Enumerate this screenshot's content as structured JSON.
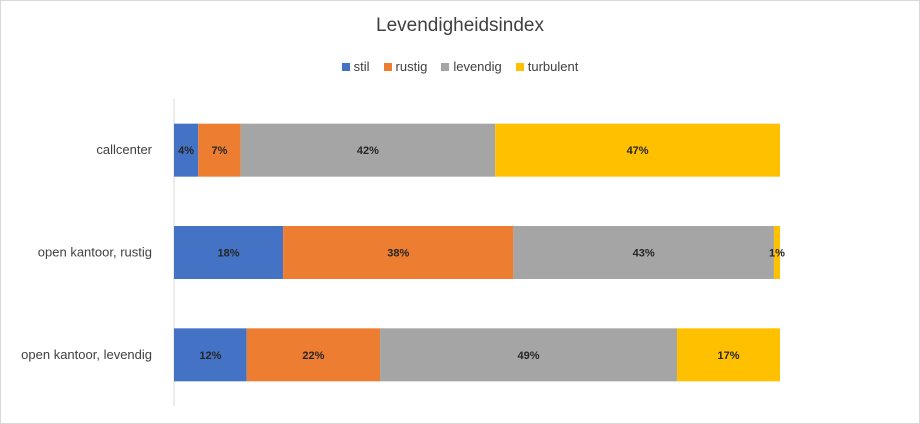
{
  "chart_data": {
    "type": "bar",
    "orientation": "horizontal",
    "stacked": "percent",
    "title": "Levendigheidsindex",
    "legend_position": "top",
    "categories": [
      "callcenter",
      "open kantoor, rustig",
      "open kantoor, levendig"
    ],
    "series": [
      {
        "name": "stil",
        "color": "#4472c4",
        "values": [
          4,
          18,
          12
        ],
        "labels": [
          "4%",
          "18%",
          "12%"
        ]
      },
      {
        "name": "rustig",
        "color": "#ed7d31",
        "values": [
          7,
          38,
          22
        ],
        "labels": [
          "7%",
          "38%",
          "22%"
        ]
      },
      {
        "name": "levendig",
        "color": "#a5a5a5",
        "values": [
          42,
          43,
          49
        ],
        "labels": [
          "42%",
          "43%",
          "49%"
        ]
      },
      {
        "name": "turbulent",
        "color": "#ffc000",
        "values": [
          47,
          1,
          17
        ],
        "labels": [
          "47%",
          "1%",
          "17%"
        ]
      }
    ],
    "xlim": [
      0,
      100
    ],
    "grid": false
  }
}
